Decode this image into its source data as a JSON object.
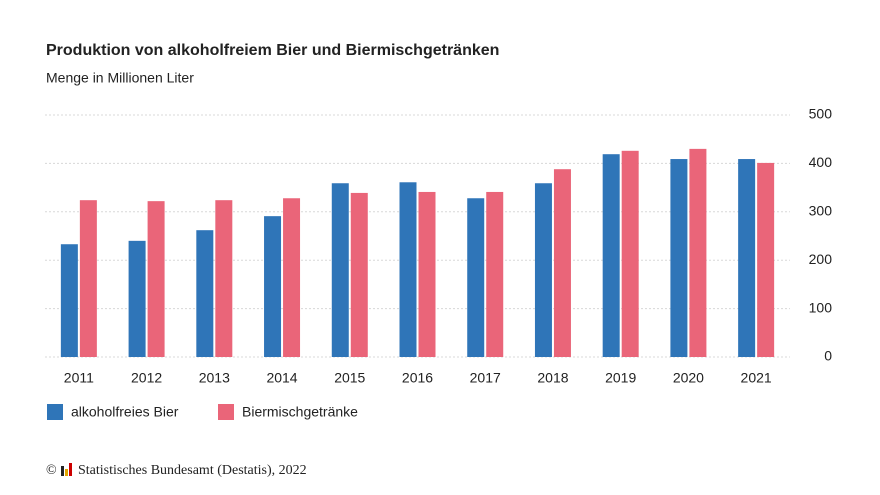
{
  "chart_data": {
    "type": "bar",
    "title": "Produktion von alkoholfreiem Bier und Biermischgetränken",
    "subtitle": "Menge in Millionen Liter",
    "categories": [
      "2011",
      "2012",
      "2013",
      "2014",
      "2015",
      "2016",
      "2017",
      "2018",
      "2019",
      "2020",
      "2021"
    ],
    "series": [
      {
        "name": "alkoholfreies Bier",
        "color": "#2f75b8",
        "values": [
          233,
          240,
          262,
          291,
          359,
          361,
          328,
          359,
          419,
          409,
          409
        ]
      },
      {
        "name": "Biermischgetränke",
        "color": "#ea6579",
        "values": [
          324,
          322,
          324,
          328,
          339,
          341,
          341,
          388,
          426,
          430,
          401
        ]
      }
    ],
    "ylim": [
      0,
      500
    ],
    "yticks": [
      0,
      100,
      200,
      300,
      400,
      500
    ],
    "grid": true,
    "legend": "bottom"
  },
  "footer": {
    "copyright": "©",
    "source": "Statistisches Bundesamt (Destatis), 2022"
  }
}
